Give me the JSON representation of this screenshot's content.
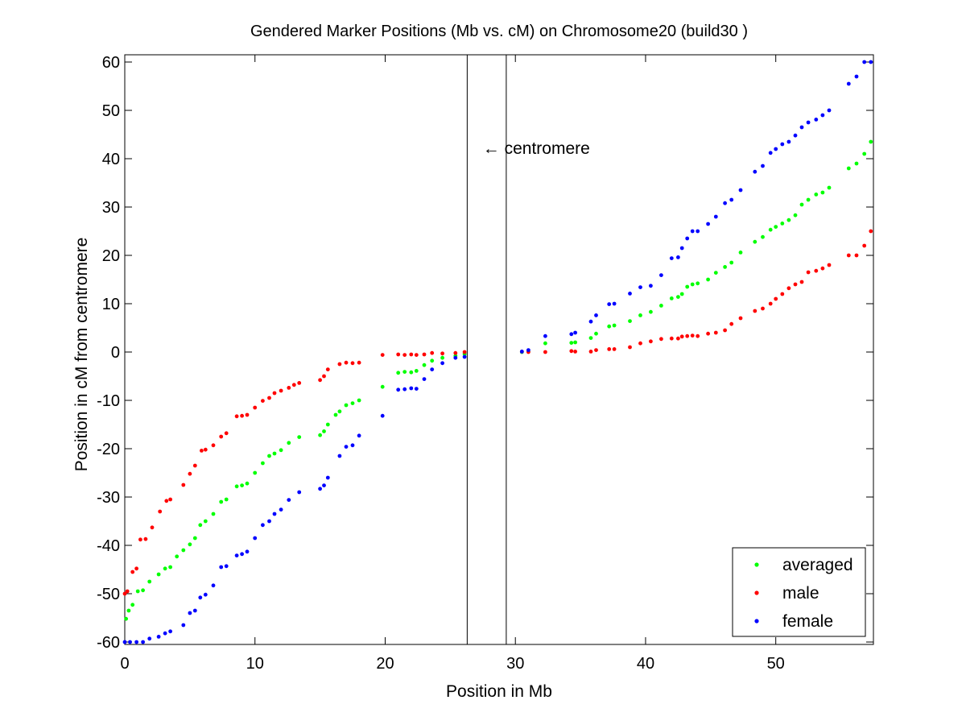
{
  "chart_data": {
    "type": "scatter",
    "title": "Gendered Marker Positions (Mb vs. cM) on Chromosome20 (build30 )",
    "xlabel": "Position in Mb",
    "ylabel": "Position in cM from centromere",
    "xlim": [
      0,
      57.5
    ],
    "ylim": [
      -60.5,
      61.5
    ],
    "xticks": [
      0,
      10,
      20,
      30,
      40,
      50
    ],
    "yticks": [
      -60,
      -50,
      -40,
      -30,
      -20,
      -10,
      0,
      10,
      20,
      30,
      40,
      50,
      60
    ],
    "legend_position": "bottom-right",
    "centromere_lines": [
      26.3,
      29.3
    ],
    "annotations": [
      {
        "text": "← centromere",
        "x": 27.5,
        "y": 41
      }
    ],
    "series": [
      {
        "name": "averaged",
        "color": "#00ff00",
        "points": [
          [
            0.1,
            -55.2
          ],
          [
            0.3,
            -53.5
          ],
          [
            0.6,
            -52.3
          ],
          [
            1.0,
            -49.5
          ],
          [
            1.4,
            -49.3
          ],
          [
            1.9,
            -47.5
          ],
          [
            2.6,
            -46.0
          ],
          [
            3.1,
            -44.8
          ],
          [
            3.5,
            -44.5
          ],
          [
            4.0,
            -42.3
          ],
          [
            4.5,
            -41.0
          ],
          [
            5.0,
            -39.8
          ],
          [
            5.4,
            -38.5
          ],
          [
            5.8,
            -35.8
          ],
          [
            6.2,
            -35.0
          ],
          [
            6.8,
            -33.5
          ],
          [
            7.4,
            -31.0
          ],
          [
            7.8,
            -30.5
          ],
          [
            8.6,
            -27.8
          ],
          [
            9.0,
            -27.6
          ],
          [
            9.4,
            -27.2
          ],
          [
            10.0,
            -25.0
          ],
          [
            10.6,
            -23.0
          ],
          [
            11.1,
            -21.5
          ],
          [
            11.5,
            -21.0
          ],
          [
            12.0,
            -20.3
          ],
          [
            12.6,
            -18.8
          ],
          [
            13.4,
            -17.6
          ],
          [
            15.0,
            -17.2
          ],
          [
            15.3,
            -16.4
          ],
          [
            15.6,
            -15.0
          ],
          [
            16.2,
            -13.0
          ],
          [
            16.5,
            -12.3
          ],
          [
            17.0,
            -11.0
          ],
          [
            17.5,
            -10.6
          ],
          [
            18.0,
            -10.0
          ],
          [
            19.8,
            -7.2
          ],
          [
            21.0,
            -4.3
          ],
          [
            21.5,
            -4.1
          ],
          [
            22.0,
            -4.2
          ],
          [
            22.4,
            -3.9
          ],
          [
            23.0,
            -2.7
          ],
          [
            23.6,
            -1.8
          ],
          [
            24.4,
            -1.2
          ],
          [
            25.4,
            -0.8
          ],
          [
            26.1,
            -0.4
          ],
          [
            30.5,
            0.0
          ],
          [
            31.0,
            0.1
          ],
          [
            32.3,
            1.8
          ],
          [
            34.3,
            1.9
          ],
          [
            34.6,
            2.0
          ],
          [
            35.8,
            2.9
          ],
          [
            36.2,
            3.8
          ],
          [
            37.2,
            5.3
          ],
          [
            37.6,
            5.5
          ],
          [
            38.8,
            6.4
          ],
          [
            39.6,
            7.6
          ],
          [
            40.4,
            8.3
          ],
          [
            41.2,
            9.6
          ],
          [
            42.0,
            11.1
          ],
          [
            42.5,
            11.4
          ],
          [
            42.8,
            12.0
          ],
          [
            43.2,
            13.5
          ],
          [
            43.6,
            14.0
          ],
          [
            44.0,
            14.2
          ],
          [
            44.8,
            15.0
          ],
          [
            45.4,
            16.4
          ],
          [
            46.1,
            17.6
          ],
          [
            46.6,
            18.5
          ],
          [
            47.3,
            20.6
          ],
          [
            48.4,
            22.8
          ],
          [
            49.0,
            23.8
          ],
          [
            49.6,
            25.3
          ],
          [
            50.0,
            25.9
          ],
          [
            50.5,
            26.6
          ],
          [
            51.0,
            27.3
          ],
          [
            51.5,
            28.3
          ],
          [
            52.0,
            30.5
          ],
          [
            52.5,
            31.5
          ],
          [
            53.1,
            32.6
          ],
          [
            53.6,
            33.0
          ],
          [
            54.1,
            34.0
          ],
          [
            55.6,
            38.0
          ],
          [
            56.2,
            39.0
          ],
          [
            56.8,
            41.0
          ],
          [
            57.3,
            43.5
          ]
        ]
      },
      {
        "name": "male",
        "color": "#ff0000",
        "points": [
          [
            0.0,
            -50.0
          ],
          [
            0.2,
            -49.5
          ],
          [
            0.6,
            -45.5
          ],
          [
            0.9,
            -44.8
          ],
          [
            1.2,
            -38.8
          ],
          [
            1.6,
            -38.7
          ],
          [
            2.1,
            -36.3
          ],
          [
            2.7,
            -33.0
          ],
          [
            3.2,
            -30.8
          ],
          [
            3.5,
            -30.5
          ],
          [
            4.5,
            -27.5
          ],
          [
            5.0,
            -25.2
          ],
          [
            5.4,
            -23.5
          ],
          [
            5.9,
            -20.4
          ],
          [
            6.2,
            -20.2
          ],
          [
            6.8,
            -19.3
          ],
          [
            7.4,
            -17.5
          ],
          [
            7.8,
            -16.8
          ],
          [
            8.6,
            -13.3
          ],
          [
            9.0,
            -13.2
          ],
          [
            9.4,
            -13.0
          ],
          [
            10.0,
            -11.5
          ],
          [
            10.6,
            -10.1
          ],
          [
            11.1,
            -9.5
          ],
          [
            11.5,
            -8.5
          ],
          [
            12.0,
            -8.0
          ],
          [
            12.6,
            -7.4
          ],
          [
            13.0,
            -6.8
          ],
          [
            13.4,
            -6.4
          ],
          [
            15.0,
            -5.8
          ],
          [
            15.3,
            -5.0
          ],
          [
            15.6,
            -3.6
          ],
          [
            16.5,
            -2.5
          ],
          [
            17.0,
            -2.2
          ],
          [
            17.5,
            -2.3
          ],
          [
            18.0,
            -2.2
          ],
          [
            19.8,
            -0.6
          ],
          [
            21.0,
            -0.5
          ],
          [
            21.5,
            -0.6
          ],
          [
            22.0,
            -0.5
          ],
          [
            22.4,
            -0.6
          ],
          [
            23.0,
            -0.5
          ],
          [
            23.6,
            -0.2
          ],
          [
            24.4,
            -0.3
          ],
          [
            25.4,
            -0.2
          ],
          [
            26.1,
            0.0
          ],
          [
            30.5,
            0.1
          ],
          [
            31.0,
            0.0
          ],
          [
            32.3,
            0.0
          ],
          [
            34.3,
            0.2
          ],
          [
            34.6,
            0.1
          ],
          [
            35.8,
            0.1
          ],
          [
            36.2,
            0.4
          ],
          [
            37.2,
            0.6
          ],
          [
            37.6,
            0.6
          ],
          [
            38.8,
            1.0
          ],
          [
            39.6,
            1.8
          ],
          [
            40.4,
            2.2
          ],
          [
            41.2,
            2.7
          ],
          [
            42.0,
            2.8
          ],
          [
            42.5,
            2.8
          ],
          [
            42.8,
            3.2
          ],
          [
            43.2,
            3.3
          ],
          [
            43.6,
            3.4
          ],
          [
            44.0,
            3.3
          ],
          [
            44.8,
            3.8
          ],
          [
            45.4,
            4.0
          ],
          [
            46.1,
            4.5
          ],
          [
            46.6,
            5.8
          ],
          [
            47.3,
            7.0
          ],
          [
            48.4,
            8.5
          ],
          [
            49.0,
            9.0
          ],
          [
            49.6,
            10.0
          ],
          [
            50.0,
            11.0
          ],
          [
            50.5,
            12.0
          ],
          [
            51.0,
            13.2
          ],
          [
            51.5,
            14.0
          ],
          [
            52.0,
            14.5
          ],
          [
            52.5,
            16.5
          ],
          [
            53.1,
            16.8
          ],
          [
            53.6,
            17.3
          ],
          [
            54.1,
            18.0
          ],
          [
            55.6,
            20.0
          ],
          [
            56.2,
            20.0
          ],
          [
            56.8,
            22.0
          ],
          [
            57.3,
            25.0
          ]
        ]
      },
      {
        "name": "female",
        "color": "#0000ff",
        "points": [
          [
            0.0,
            -60.0
          ],
          [
            0.4,
            -60.0
          ],
          [
            0.9,
            -60.0
          ],
          [
            1.4,
            -60.0
          ],
          [
            1.9,
            -59.3
          ],
          [
            2.6,
            -58.9
          ],
          [
            3.1,
            -58.2
          ],
          [
            3.5,
            -57.8
          ],
          [
            4.5,
            -56.5
          ],
          [
            5.0,
            -54.0
          ],
          [
            5.4,
            -53.5
          ],
          [
            5.8,
            -50.8
          ],
          [
            6.2,
            -50.2
          ],
          [
            6.8,
            -48.3
          ],
          [
            7.4,
            -44.5
          ],
          [
            7.8,
            -44.3
          ],
          [
            8.6,
            -42.1
          ],
          [
            9.0,
            -41.8
          ],
          [
            9.4,
            -41.3
          ],
          [
            10.0,
            -38.5
          ],
          [
            10.6,
            -35.8
          ],
          [
            11.1,
            -35.0
          ],
          [
            11.5,
            -33.5
          ],
          [
            12.0,
            -32.6
          ],
          [
            12.6,
            -30.6
          ],
          [
            13.4,
            -29.0
          ],
          [
            15.0,
            -28.3
          ],
          [
            15.3,
            -27.6
          ],
          [
            15.6,
            -26.0
          ],
          [
            16.5,
            -21.5
          ],
          [
            17.0,
            -19.6
          ],
          [
            17.5,
            -19.3
          ],
          [
            18.0,
            -17.3
          ],
          [
            19.8,
            -13.2
          ],
          [
            21.0,
            -7.8
          ],
          [
            21.5,
            -7.7
          ],
          [
            22.0,
            -7.5
          ],
          [
            22.4,
            -7.6
          ],
          [
            23.0,
            -5.6
          ],
          [
            23.6,
            -3.6
          ],
          [
            24.4,
            -2.3
          ],
          [
            25.4,
            -1.2
          ],
          [
            26.1,
            -1.0
          ],
          [
            30.5,
            0.1
          ],
          [
            31.0,
            0.4
          ],
          [
            32.3,
            3.3
          ],
          [
            34.3,
            3.7
          ],
          [
            34.6,
            4.0
          ],
          [
            35.8,
            6.3
          ],
          [
            36.2,
            7.6
          ],
          [
            37.2,
            9.9
          ],
          [
            37.6,
            10.0
          ],
          [
            38.8,
            12.1
          ],
          [
            39.6,
            13.4
          ],
          [
            40.4,
            13.7
          ],
          [
            41.2,
            15.9
          ],
          [
            42.0,
            19.4
          ],
          [
            42.5,
            19.6
          ],
          [
            42.8,
            21.5
          ],
          [
            43.2,
            23.5
          ],
          [
            43.6,
            25.0
          ],
          [
            44.0,
            25.0
          ],
          [
            44.8,
            26.5
          ],
          [
            45.4,
            28.0
          ],
          [
            46.1,
            30.8
          ],
          [
            46.6,
            31.5
          ],
          [
            47.3,
            33.5
          ],
          [
            48.4,
            37.3
          ],
          [
            49.0,
            38.5
          ],
          [
            49.6,
            41.2
          ],
          [
            50.0,
            42.0
          ],
          [
            50.5,
            43.0
          ],
          [
            51.0,
            43.5
          ],
          [
            51.5,
            44.8
          ],
          [
            52.0,
            46.5
          ],
          [
            52.5,
            47.5
          ],
          [
            53.1,
            48.1
          ],
          [
            53.6,
            49.0
          ],
          [
            54.1,
            50.0
          ],
          [
            55.6,
            55.5
          ],
          [
            56.2,
            57.0
          ],
          [
            56.8,
            60.0
          ],
          [
            57.3,
            60.0
          ]
        ]
      }
    ]
  }
}
